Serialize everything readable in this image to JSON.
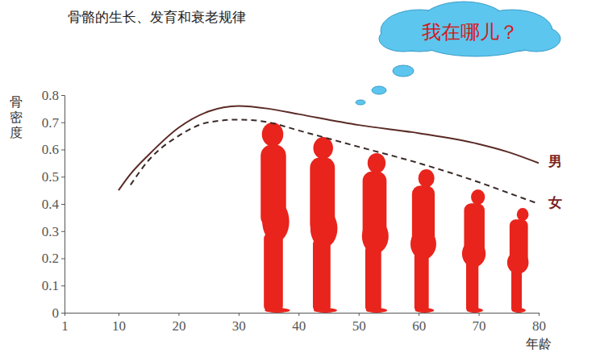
{
  "chart_data": {
    "type": "line",
    "title": "骨骼的生长、发育和衰老规律",
    "annotations": [
      "我在哪儿？"
    ],
    "x_label": "年龄",
    "y_label": "骨密度",
    "x": [
      10,
      12,
      15,
      20,
      25,
      30,
      35,
      40,
      50,
      60,
      70,
      75,
      80
    ],
    "series": [
      {
        "name": "男",
        "color": "#5a2a25",
        "line_style": "solid",
        "values": [
          0.45,
          0.51,
          0.58,
          0.68,
          0.74,
          0.76,
          0.75,
          0.73,
          0.69,
          0.66,
          0.62,
          0.59,
          0.55
        ]
      },
      {
        "name": "女",
        "color": "#3a2a28",
        "line_style": "dashed",
        "values": [
          null,
          0.47,
          0.56,
          0.65,
          0.7,
          0.71,
          0.7,
          0.67,
          0.61,
          0.55,
          0.48,
          0.44,
          0.4
        ]
      }
    ],
    "xlim": [
      1,
      80
    ],
    "xticks": [
      1,
      10,
      20,
      30,
      40,
      50,
      60,
      70,
      80
    ],
    "ylim": [
      0,
      0.8
    ],
    "yticks": [
      0,
      0.1,
      0.2,
      0.3,
      0.4,
      0.5,
      0.6,
      0.7,
      0.8
    ],
    "grid": false
  }
}
